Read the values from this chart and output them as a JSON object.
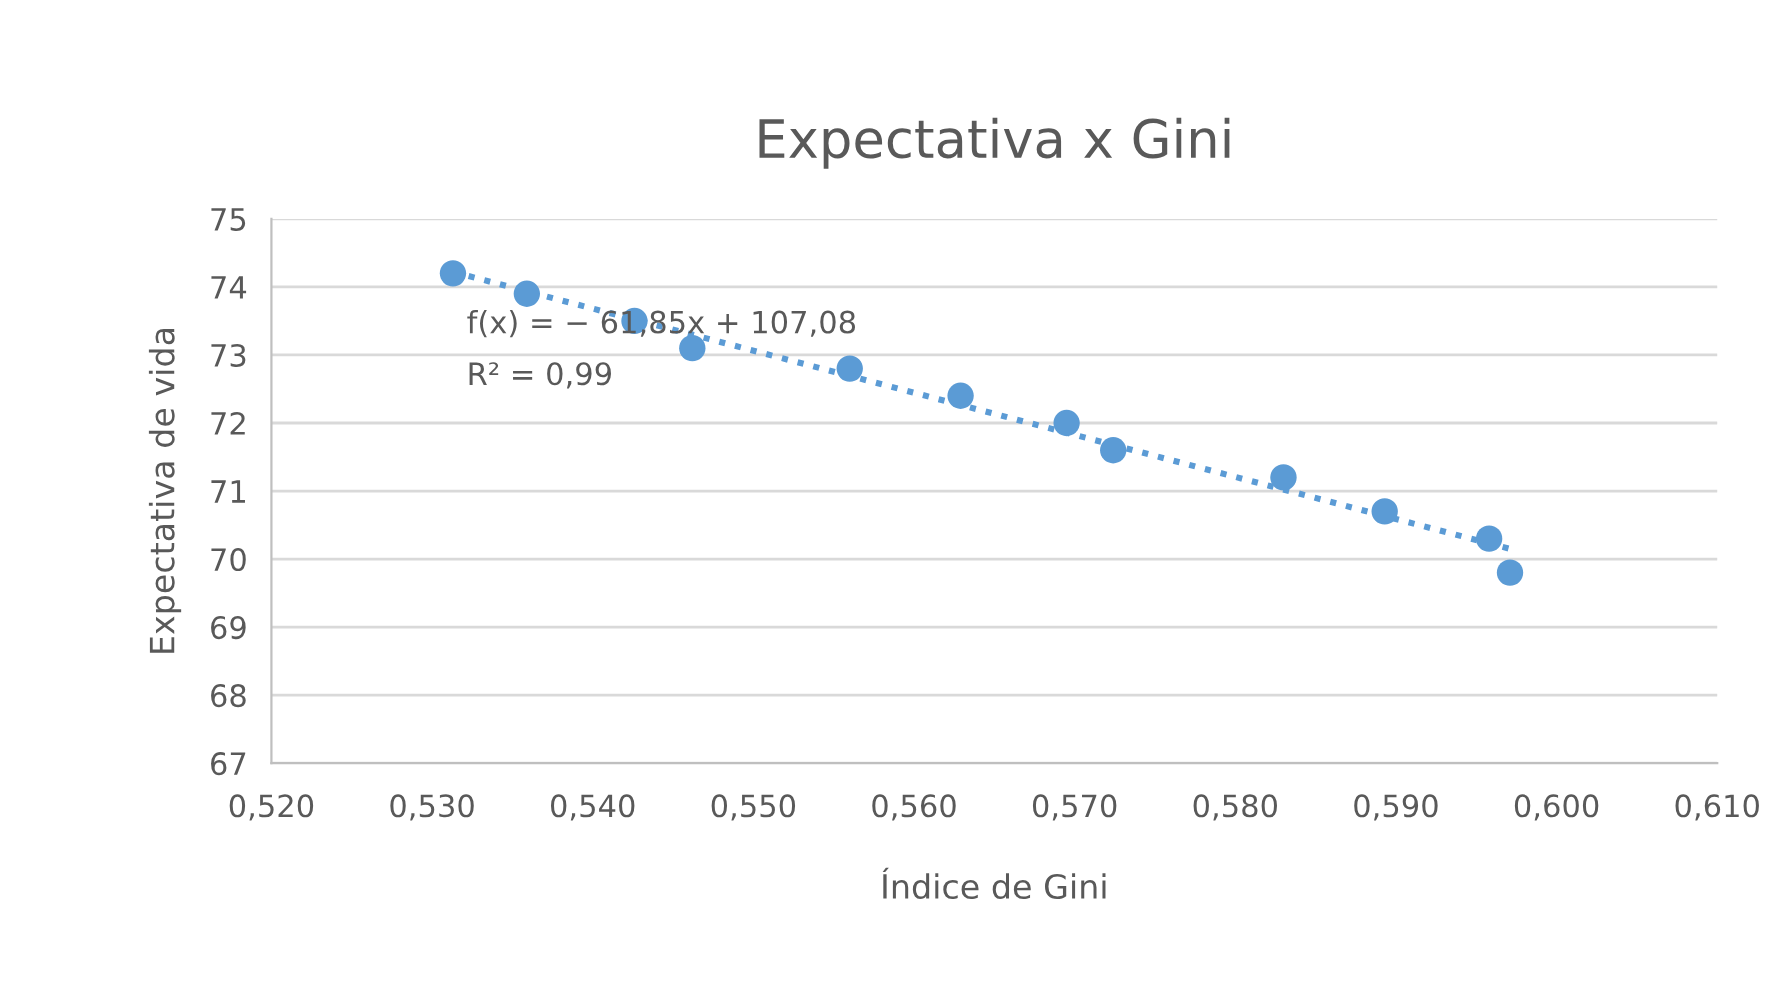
{
  "chart_data": {
    "type": "scatter",
    "title": "Expectativa x Gini",
    "xlabel": "Índice de Gini",
    "ylabel": "Expectativa de vida",
    "series": [
      {
        "color": "#5b9bd5",
        "marker": "circle",
        "x": [
          0.5313,
          0.5359,
          0.5426,
          0.5462,
          0.556,
          0.5629,
          0.5695,
          0.5724,
          0.583,
          0.5893,
          0.5958,
          0.5971
        ],
        "values": [
          74.2,
          73.9,
          73.5,
          73.1,
          72.8,
          72.4,
          72.0,
          71.6,
          71.2,
          70.7,
          70.3,
          69.8
        ]
      },
      {
        "type": "line",
        "color": "#5b9bd5",
        "line_style": "dotted",
        "x": [
          0.5313,
          0.5971
        ],
        "values": [
          74.22,
          70.15
        ]
      }
    ],
    "annotations": [
      "f(x) = − 61,85x + 107,08",
      "R² = 0,99"
    ],
    "xlim": [
      0.52,
      0.61
    ],
    "xticks": [
      {
        "value": 0.52,
        "label": "0,520"
      },
      {
        "value": 0.53,
        "label": "0,530"
      },
      {
        "value": 0.54,
        "label": "0,540"
      },
      {
        "value": 0.55,
        "label": "0,550"
      },
      {
        "value": 0.56,
        "label": "0,560"
      },
      {
        "value": 0.57,
        "label": "0,570"
      },
      {
        "value": 0.58,
        "label": "0,580"
      },
      {
        "value": 0.59,
        "label": "0,590"
      },
      {
        "value": 0.6,
        "label": "0,600"
      },
      {
        "value": 0.61,
        "label": "0,610"
      }
    ],
    "ylim": [
      67,
      75
    ],
    "yticks": [
      67,
      68,
      69,
      70,
      71,
      72,
      73,
      74,
      75
    ],
    "grid": "y"
  }
}
